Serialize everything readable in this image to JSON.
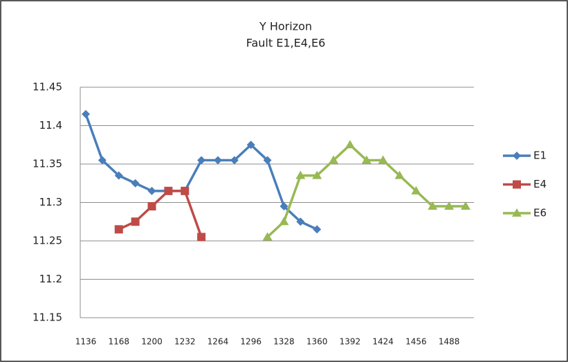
{
  "chart_data": {
    "type": "line",
    "title": "Y Horizon",
    "subtitle": "Fault E1,E4,E6",
    "categories": [
      "1136",
      null,
      "1168",
      null,
      "1200",
      null,
      "1232",
      null,
      "1264",
      null,
      "1296",
      null,
      "1328",
      null,
      "1360",
      null,
      "1392",
      null,
      "1424",
      null,
      "1456",
      null,
      "1488",
      null
    ],
    "series": [
      {
        "name": "E1",
        "color": "#4a7ebb",
        "marker": "diamond",
        "values": [
          11.415,
          11.355,
          11.335,
          11.325,
          11.315,
          11.315,
          11.315,
          11.355,
          11.355,
          11.355,
          11.375,
          11.355,
          11.295,
          11.275,
          11.265,
          null,
          null,
          null,
          null,
          null,
          null,
          null,
          null,
          null
        ]
      },
      {
        "name": "E4",
        "color": "#be4b48",
        "marker": "square",
        "values": [
          null,
          null,
          11.265,
          11.275,
          11.295,
          11.315,
          11.315,
          11.255,
          null,
          null,
          null,
          null,
          null,
          null,
          null,
          null,
          null,
          null,
          null,
          null,
          null,
          null,
          null,
          null
        ]
      },
      {
        "name": "E6",
        "color": "#98b954",
        "marker": "triangle",
        "values": [
          null,
          null,
          null,
          null,
          null,
          null,
          null,
          null,
          null,
          null,
          null,
          11.255,
          11.275,
          11.335,
          11.335,
          11.355,
          11.375,
          11.355,
          11.355,
          11.335,
          11.315,
          11.295,
          11.295,
          11.295
        ]
      }
    ],
    "ylim": [
      11.15,
      11.45
    ],
    "yticks": [
      11.15,
      11.2,
      11.25,
      11.3,
      11.35,
      11.4,
      11.45
    ],
    "grid": true,
    "legend": "right"
  }
}
